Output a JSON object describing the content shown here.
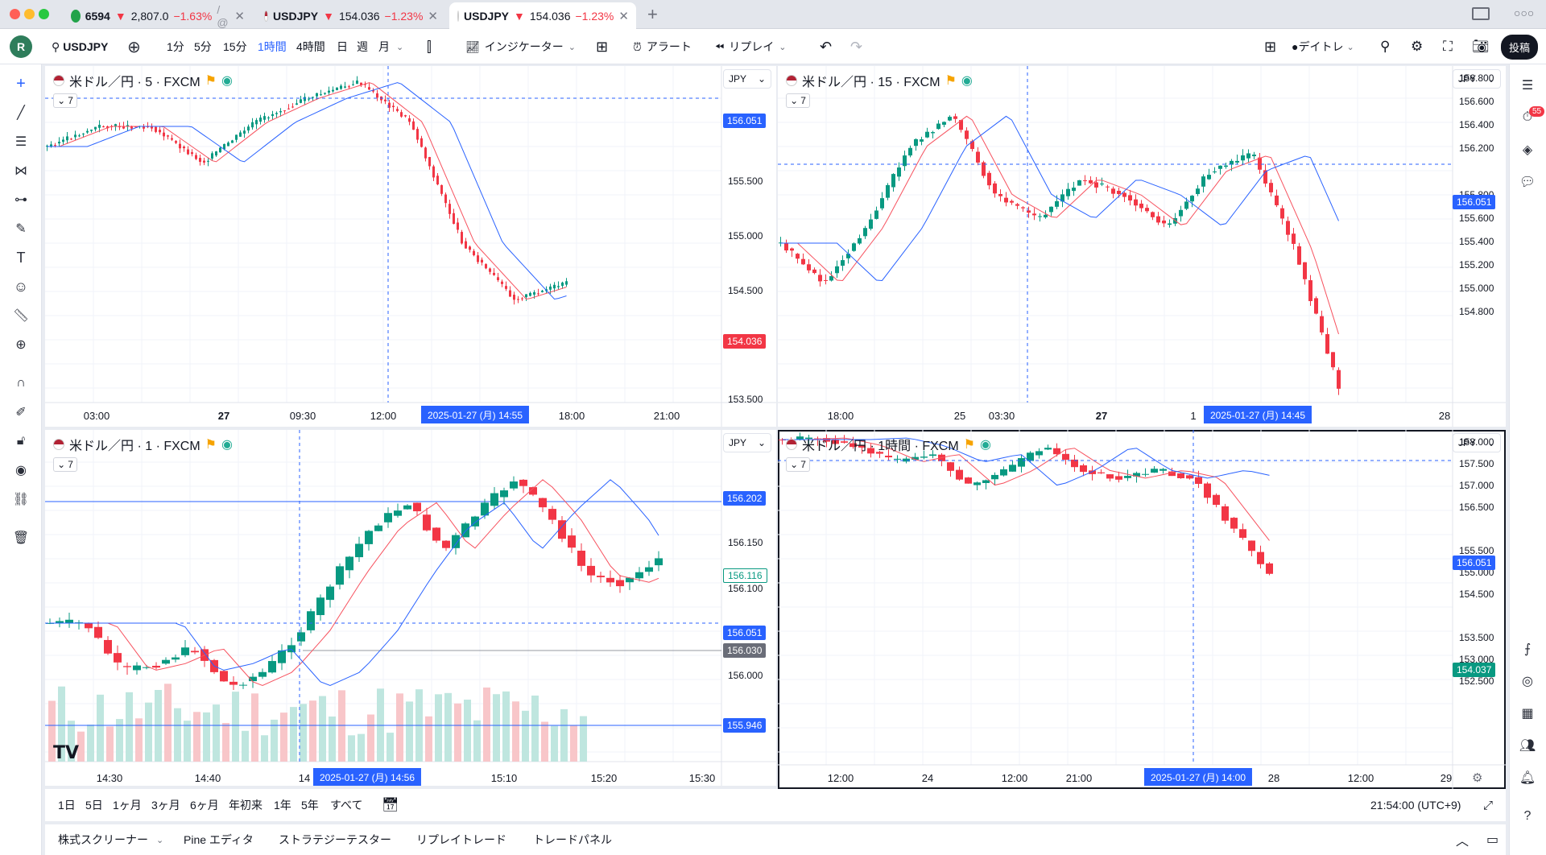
{
  "browser": {
    "tabs": [
      {
        "label": "6594",
        "price": "2,807.0",
        "change": "−1.63%",
        "rest": "/ @"
      },
      {
        "label": "USDJPY",
        "price": "154.036",
        "change": "−1.23%"
      },
      {
        "label": "USDJPY",
        "price": "154.036",
        "change": "−1.23%"
      }
    ],
    "more": "○○○"
  },
  "toolbar": {
    "avatar": "R",
    "symbol": "USDJPY",
    "intervals": [
      "1分",
      "5分",
      "15分",
      "1時間",
      "4時間",
      "日",
      "週",
      "月"
    ],
    "active_interval": "1時間",
    "indicators": "インジケーター",
    "alert": "アラート",
    "replay": "リプレイ",
    "daytrade": "●デイトレ",
    "publish": "投稿"
  },
  "right_sidebar": {
    "badge": "55"
  },
  "panels": [
    {
      "title": "米ドル／円 · 5 · FXCM",
      "currency": "JPY",
      "legend_count": "7",
      "y_labels": [
        "155.500",
        "155.000",
        "154.500",
        "153.500"
      ],
      "x_labels": [
        "03:00",
        "27",
        "09:30",
        "12:00",
        "18:00",
        "21:00"
      ],
      "crosshair_time": "2025-01-27 (月)   14:55",
      "price_tags": [
        {
          "value": "156.051",
          "color": "#2962ff"
        },
        {
          "value": "154.036",
          "color": "#f23645"
        }
      ]
    },
    {
      "title": "米ドル／円 · 15 · FXCM",
      "currency": "JPY",
      "legend_count": "7",
      "y_labels": [
        "156.800",
        "156.600",
        "156.400",
        "156.200",
        "155.800",
        "155.600",
        "155.400",
        "155.200",
        "155.000",
        "154.800"
      ],
      "x_labels": [
        "18:00",
        "25",
        "03:30",
        "27",
        "1",
        "28"
      ],
      "crosshair_time": "2025-01-27 (月)   14:45",
      "price_tags": [
        {
          "value": "156.051",
          "color": "#2962ff"
        }
      ]
    },
    {
      "title": "米ドル／円 · 1 · FXCM",
      "currency": "JPY",
      "legend_count": "7",
      "y_labels": [
        "156.150",
        "156.100",
        "156.000"
      ],
      "x_labels": [
        "14:30",
        "14:40",
        "14",
        "15:10",
        "15:20",
        "15:30"
      ],
      "crosshair_time": "2025-01-27 (月)   14:56",
      "price_tags": [
        {
          "value": "156.202",
          "color": "#2962ff"
        },
        {
          "value": "156.116",
          "color": "#089981"
        },
        {
          "value": "156.051",
          "color": "#2962ff"
        },
        {
          "value": "156.030",
          "color": "#6a6d78"
        },
        {
          "value": "155.946",
          "color": "#2962ff"
        }
      ]
    },
    {
      "title": "米ドル／円 · 1時間 · FXCM",
      "currency": "JPY",
      "legend_count": "7",
      "y_labels": [
        "158.000",
        "157.500",
        "157.000",
        "156.500",
        "155.500",
        "155.000",
        "154.500",
        "153.500",
        "153.000",
        "152.500"
      ],
      "x_labels": [
        "12:00",
        "24",
        "12:00",
        "21:00",
        "28",
        "12:00",
        "29"
      ],
      "crosshair_time": "2025-01-27 (月)   14:00",
      "price_tags": [
        {
          "value": "156.051",
          "color": "#2962ff"
        },
        {
          "value": "154.037",
          "color": "#089981"
        }
      ]
    }
  ],
  "range_bar": {
    "ranges": [
      "1日",
      "5日",
      "1ヶ月",
      "3ヶ月",
      "6ヶ月",
      "年初来",
      "1年",
      "5年",
      "すべて"
    ],
    "clock": "21:54:00 (UTC+9)"
  },
  "bottom_tabs": [
    "株式スクリーナー",
    "Pine エディタ",
    "ストラテジーテスター",
    "リプレイトレード",
    "トレードパネル"
  ]
}
